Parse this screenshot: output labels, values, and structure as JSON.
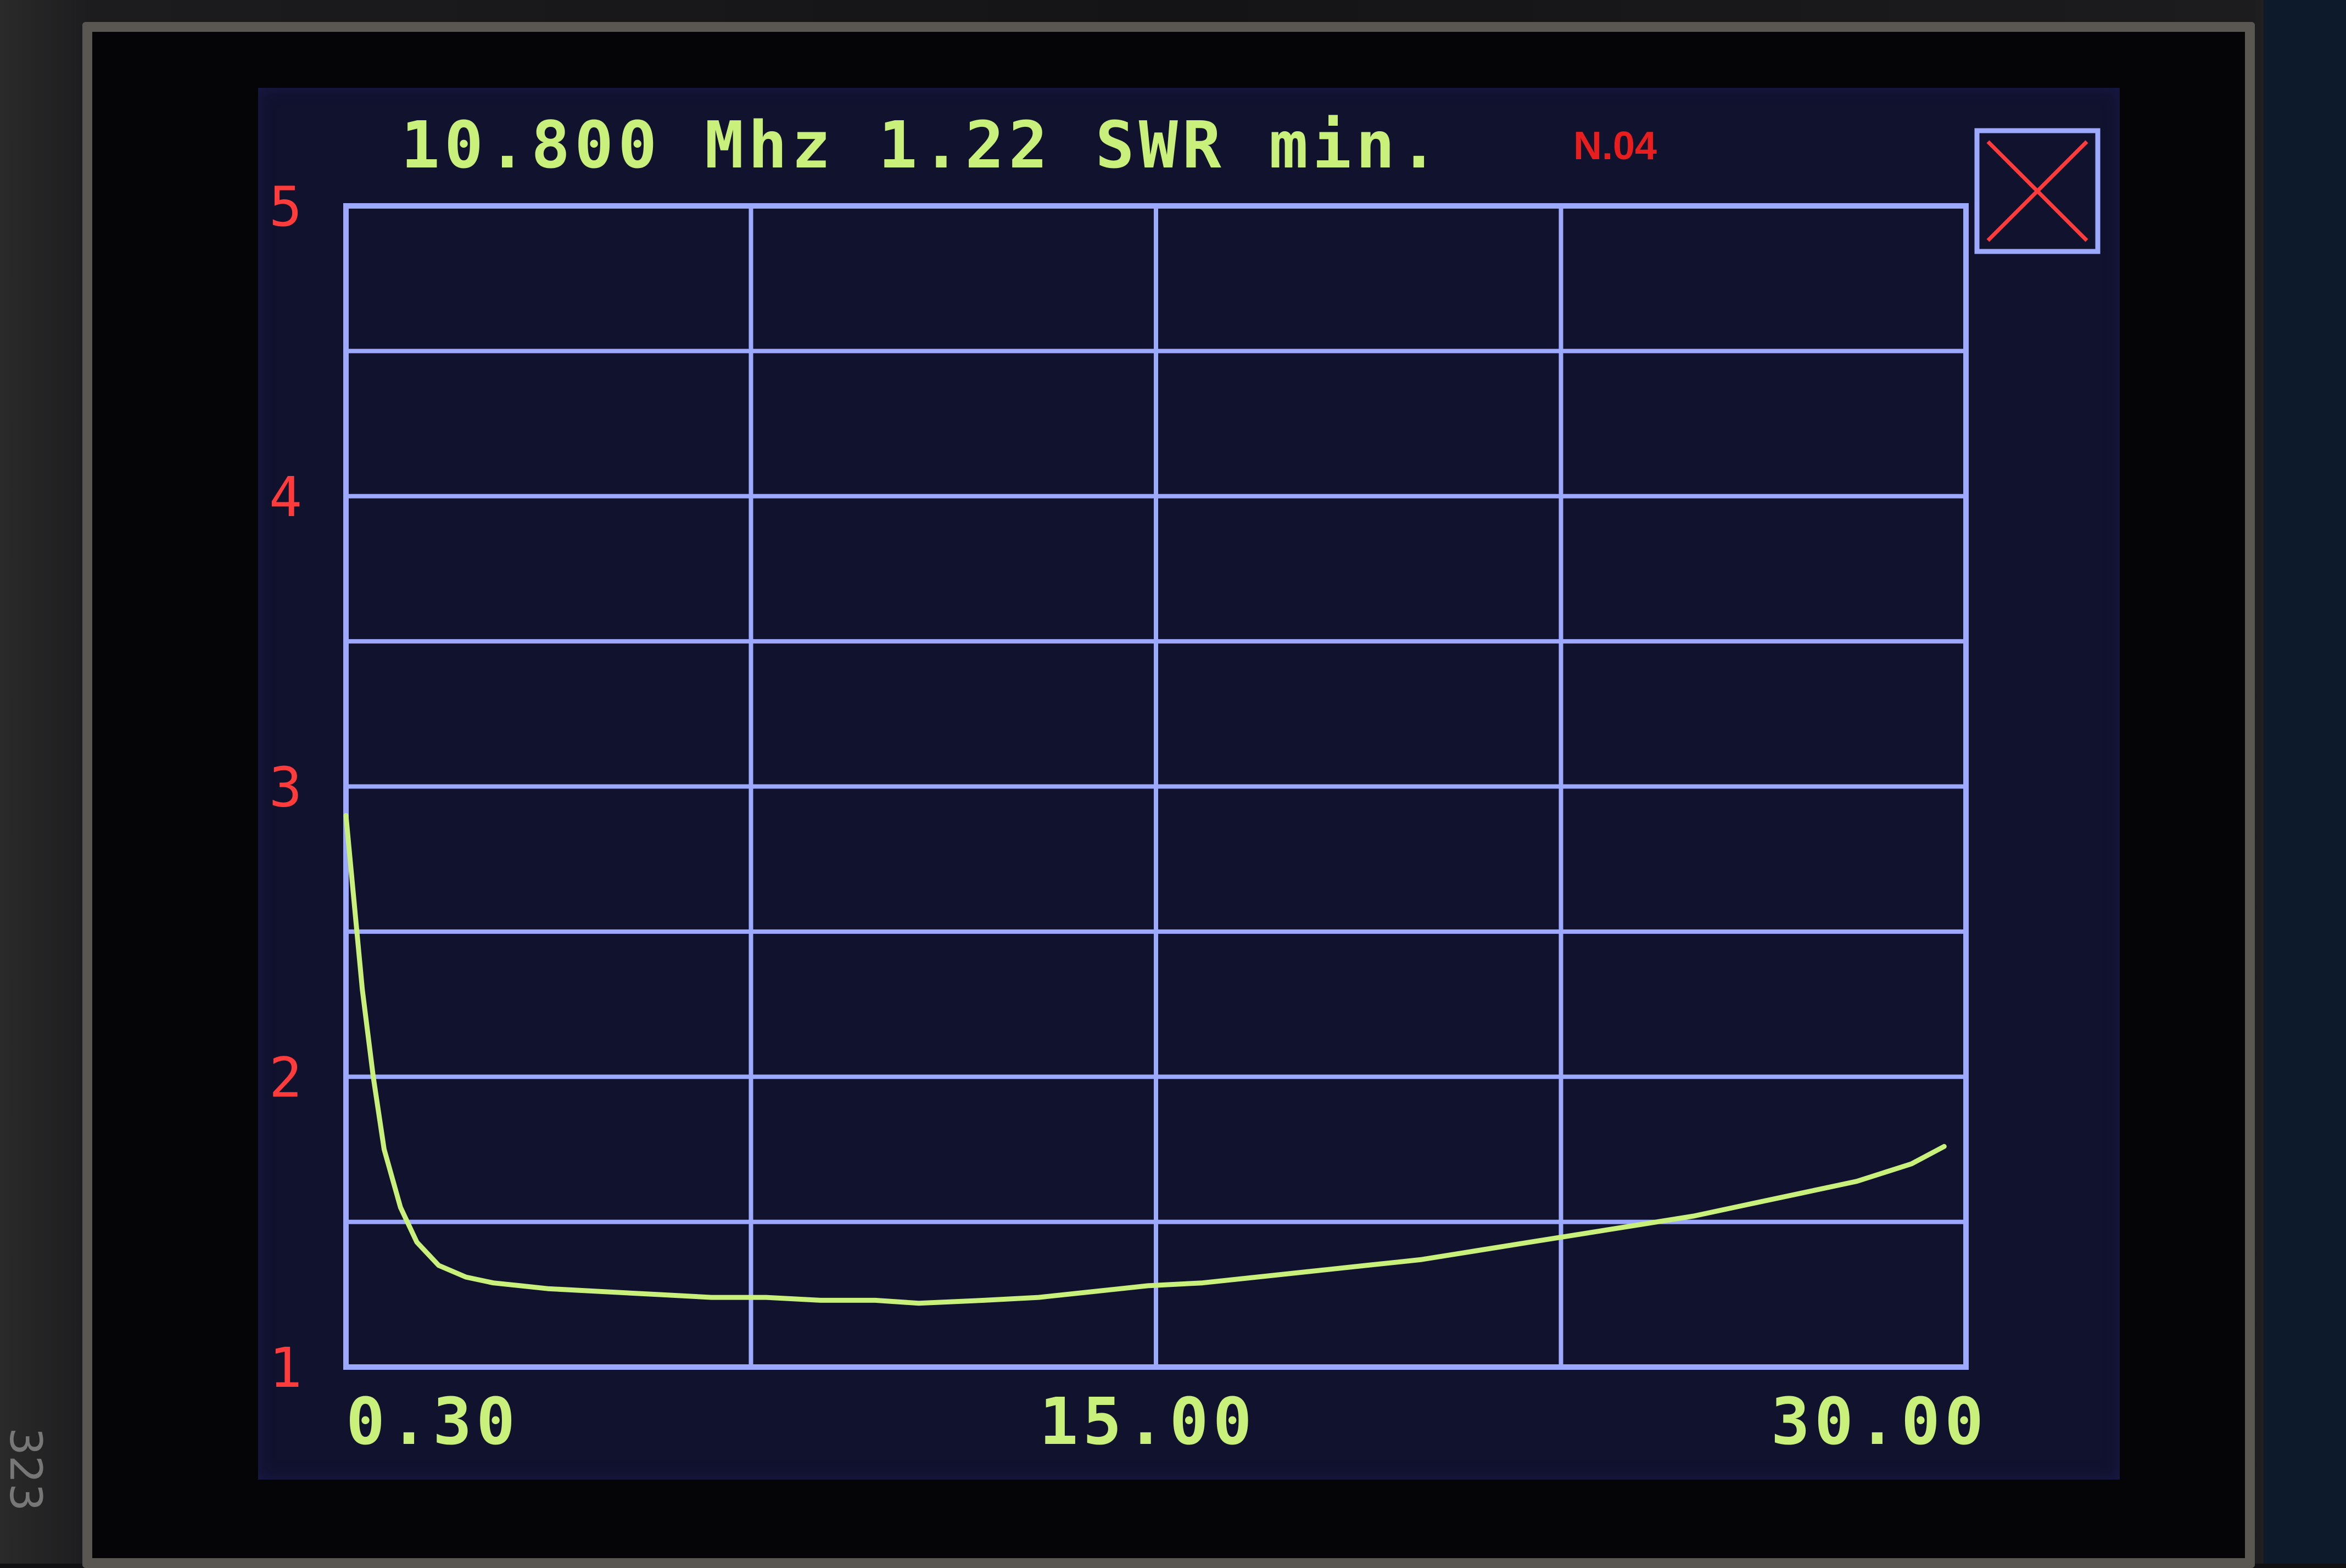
{
  "header": {
    "readout": "10.800 Mhz 1.22 SWR min.",
    "badge": "N.04"
  },
  "board_label": "323",
  "colors": {
    "screen_bg": "#11122e",
    "grid": "#9da8ff",
    "trace": "#c8f07a",
    "text_green": "#c8f07a",
    "text_red": "#ff3b3b",
    "badge_red": "#e81d1d"
  },
  "close_button": {
    "icon": "close-x-icon"
  },
  "chart_data": {
    "type": "line",
    "title": "10.800 Mhz 1.22 SWR min.",
    "xlabel": "",
    "ylabel": "",
    "xlim": [
      0.3,
      30.0
    ],
    "ylim": [
      1,
      5
    ],
    "x_tick_labels": [
      "0.30",
      "15.00",
      "30.00"
    ],
    "x_tick_values": [
      0.3,
      15.0,
      30.0
    ],
    "y_tick_labels": [
      "1",
      "2",
      "3",
      "4",
      "5"
    ],
    "y_tick_values": [
      1,
      2,
      3,
      4,
      5
    ],
    "grid": {
      "vertical_divisions": 4,
      "horizontal_divisions": 8
    },
    "series": [
      {
        "x": [
          0.3,
          0.45,
          0.6,
          0.8,
          1.0,
          1.3,
          1.6,
          2.0,
          2.5,
          3.0,
          3.5,
          4.0,
          5.0,
          6.0,
          7.0,
          8.0,
          9.0,
          10.0,
          10.8,
          12.0,
          13.0,
          14.0,
          15.0,
          16.0,
          17.0,
          18.0,
          19.0,
          20.0,
          21.0,
          22.0,
          23.0,
          24.0,
          25.0,
          26.0,
          27.0,
          28.0,
          29.0,
          29.6
        ],
        "y": [
          2.9,
          2.6,
          2.3,
          2.0,
          1.75,
          1.55,
          1.43,
          1.35,
          1.31,
          1.29,
          1.28,
          1.27,
          1.26,
          1.25,
          1.24,
          1.24,
          1.23,
          1.23,
          1.22,
          1.23,
          1.24,
          1.26,
          1.28,
          1.29,
          1.31,
          1.33,
          1.35,
          1.37,
          1.4,
          1.43,
          1.46,
          1.49,
          1.52,
          1.56,
          1.6,
          1.64,
          1.7,
          1.76
        ]
      }
    ]
  }
}
